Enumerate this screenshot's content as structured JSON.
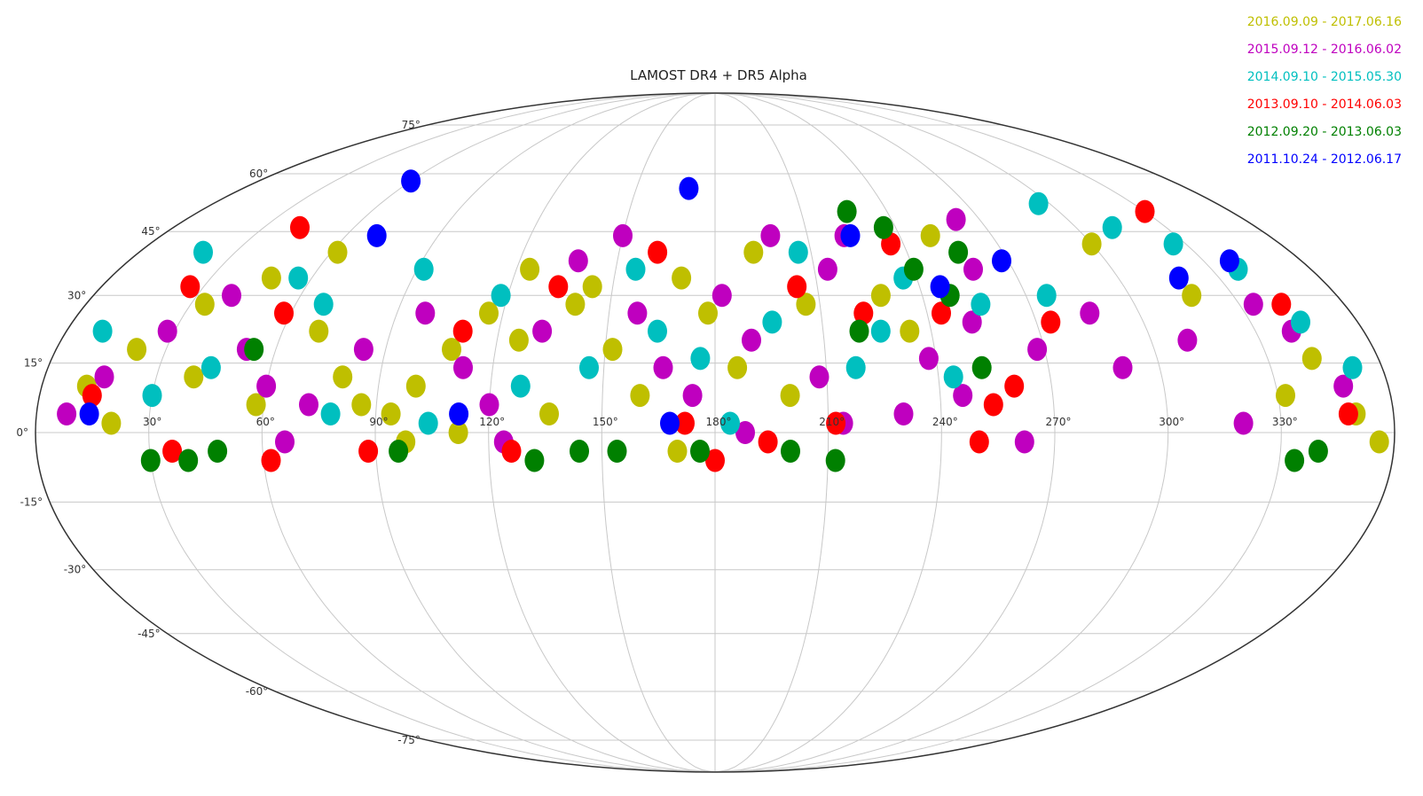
{
  "chart_data": {
    "type": "scatter",
    "title": "LAMOST DR4 + DR5 Alpha",
    "xlabel": "",
    "ylabel": "",
    "projection": "mollweide",
    "grid": true,
    "legend_position": "top-right",
    "x_tick_labels": [
      "30°",
      "60°",
      "90°",
      "120°",
      "150°",
      "180°",
      "210°",
      "240°",
      "270°",
      "300°",
      "330°"
    ],
    "y_tick_labels": [
      "75°",
      "60°",
      "45°",
      "30°",
      "15°",
      "0°",
      "-15°",
      "-30°",
      "-45°",
      "-60°",
      "-75°"
    ],
    "xlim": [
      0,
      360
    ],
    "ylim": [
      -90,
      90
    ],
    "series": [
      {
        "name": "2016.09.09 - 2017.06.16",
        "color": "#bfbf00",
        "points": [
          [
            12,
            10
          ],
          [
            22,
            18
          ],
          [
            34,
            28
          ],
          [
            48,
            34
          ],
          [
            62,
            40
          ],
          [
            70,
            22
          ],
          [
            80,
            12
          ],
          [
            86,
            6
          ],
          [
            94,
            4
          ],
          [
            100,
            10
          ],
          [
            108,
            18
          ],
          [
            116,
            26
          ],
          [
            124,
            36
          ],
          [
            126,
            20
          ],
          [
            140,
            28
          ],
          [
            144,
            32
          ],
          [
            152,
            18
          ],
          [
            160,
            8
          ],
          [
            170,
            34
          ],
          [
            178,
            26
          ],
          [
            186,
            14
          ],
          [
            192,
            40
          ],
          [
            200,
            8
          ],
          [
            206,
            28
          ],
          [
            228,
            30
          ],
          [
            250,
            44
          ],
          [
            300,
            42
          ],
          [
            318,
            30
          ],
          [
            332,
            8
          ],
          [
            342,
            16
          ],
          [
            350,
            4
          ],
          [
            356,
            -2
          ],
          [
            20,
            2
          ],
          [
            40,
            12
          ],
          [
            58,
            6
          ],
          [
            98,
            -2
          ],
          [
            112,
            0
          ],
          [
            136,
            4
          ],
          [
            170,
            -4
          ],
          [
            234,
            22
          ]
        ]
      },
      {
        "name": "2015.09.12 - 2016.06.02",
        "color": "#bf00bf",
        "points": [
          [
            8,
            4
          ],
          [
            16,
            12
          ],
          [
            28,
            22
          ],
          [
            40,
            30
          ],
          [
            52,
            18
          ],
          [
            60,
            10
          ],
          [
            72,
            6
          ],
          [
            84,
            18
          ],
          [
            98,
            26
          ],
          [
            112,
            14
          ],
          [
            120,
            6
          ],
          [
            132,
            22
          ],
          [
            138,
            38
          ],
          [
            150,
            44
          ],
          [
            158,
            26
          ],
          [
            166,
            14
          ],
          [
            174,
            8
          ],
          [
            182,
            30
          ],
          [
            190,
            20
          ],
          [
            198,
            44
          ],
          [
            208,
            12
          ],
          [
            214,
            36
          ],
          [
            222,
            44
          ],
          [
            230,
            4
          ],
          [
            238,
            16
          ],
          [
            246,
            8
          ],
          [
            252,
            24
          ],
          [
            258,
            36
          ],
          [
            262,
            48
          ],
          [
            268,
            18
          ],
          [
            286,
            26
          ],
          [
            290,
            14
          ],
          [
            310,
            20
          ],
          [
            320,
            2
          ],
          [
            334,
            28
          ],
          [
            340,
            22
          ],
          [
            348,
            10
          ],
          [
            66,
            -2
          ],
          [
            124,
            -2
          ],
          [
            188,
            0
          ],
          [
            214,
            2
          ],
          [
            262,
            -2
          ]
        ]
      },
      {
        "name": "2014.09.10 - 2015.05.30",
        "color": "#00bfbf",
        "points": [
          [
            10,
            22
          ],
          [
            20,
            40
          ],
          [
            30,
            8
          ],
          [
            44,
            14
          ],
          [
            56,
            34
          ],
          [
            68,
            28
          ],
          [
            78,
            4
          ],
          [
            92,
            36
          ],
          [
            104,
            2
          ],
          [
            118,
            30
          ],
          [
            128,
            10
          ],
          [
            146,
            14
          ],
          [
            156,
            36
          ],
          [
            164,
            22
          ],
          [
            176,
            16
          ],
          [
            184,
            2
          ],
          [
            196,
            24
          ],
          [
            206,
            40
          ],
          [
            218,
            14
          ],
          [
            226,
            22
          ],
          [
            236,
            34
          ],
          [
            244,
            12
          ],
          [
            256,
            28
          ],
          [
            276,
            30
          ],
          [
            296,
            52
          ],
          [
            312,
            46
          ],
          [
            326,
            42
          ],
          [
            338,
            36
          ],
          [
            344,
            24
          ],
          [
            352,
            14
          ]
        ]
      },
      {
        "name": "2013.09.10 - 2014.06.03",
        "color": "#ff0000",
        "points": [
          [
            14,
            8
          ],
          [
            26,
            32
          ],
          [
            42,
            46
          ],
          [
            58,
            26
          ],
          [
            88,
            -4
          ],
          [
            110,
            22
          ],
          [
            126,
            -4
          ],
          [
            134,
            32
          ],
          [
            162,
            40
          ],
          [
            172,
            2
          ],
          [
            180,
            -6
          ],
          [
            194,
            -2
          ],
          [
            204,
            32
          ],
          [
            212,
            2
          ],
          [
            222,
            26
          ],
          [
            236,
            42
          ],
          [
            244,
            26
          ],
          [
            250,
            -2
          ],
          [
            254,
            6
          ],
          [
            260,
            10
          ],
          [
            274,
            24
          ],
          [
            330,
            50
          ],
          [
            342,
            28
          ],
          [
            348,
            4
          ],
          [
            36,
            -4
          ],
          [
            62,
            -6
          ]
        ]
      },
      {
        "name": "2012.09.20 - 2013.06.03",
        "color": "#008000",
        "points": [
          [
            30,
            -6
          ],
          [
            40,
            -6
          ],
          [
            48,
            -4
          ],
          [
            54,
            18
          ],
          [
            96,
            -4
          ],
          [
            132,
            -6
          ],
          [
            144,
            -4
          ],
          [
            154,
            -4
          ],
          [
            176,
            -4
          ],
          [
            200,
            -4
          ],
          [
            212,
            -6
          ],
          [
            226,
            50
          ],
          [
            236,
            46
          ],
          [
            240,
            36
          ],
          [
            248,
            30
          ],
          [
            252,
            14
          ],
          [
            256,
            40
          ],
          [
            334,
            -6
          ],
          [
            340,
            -4
          ],
          [
            220,
            22
          ]
        ]
      },
      {
        "name": "2011.10.24 - 2012.06.17",
        "color": "#0000ff",
        "points": [
          [
            60,
            58
          ],
          [
            70,
            44
          ],
          [
            170,
            56
          ],
          [
            224,
            44
          ],
          [
            246,
            32
          ],
          [
            268,
            38
          ],
          [
            318,
            34
          ],
          [
            338,
            38
          ],
          [
            14,
            4
          ],
          [
            168,
            2
          ],
          [
            112,
            4
          ]
        ]
      }
    ]
  }
}
